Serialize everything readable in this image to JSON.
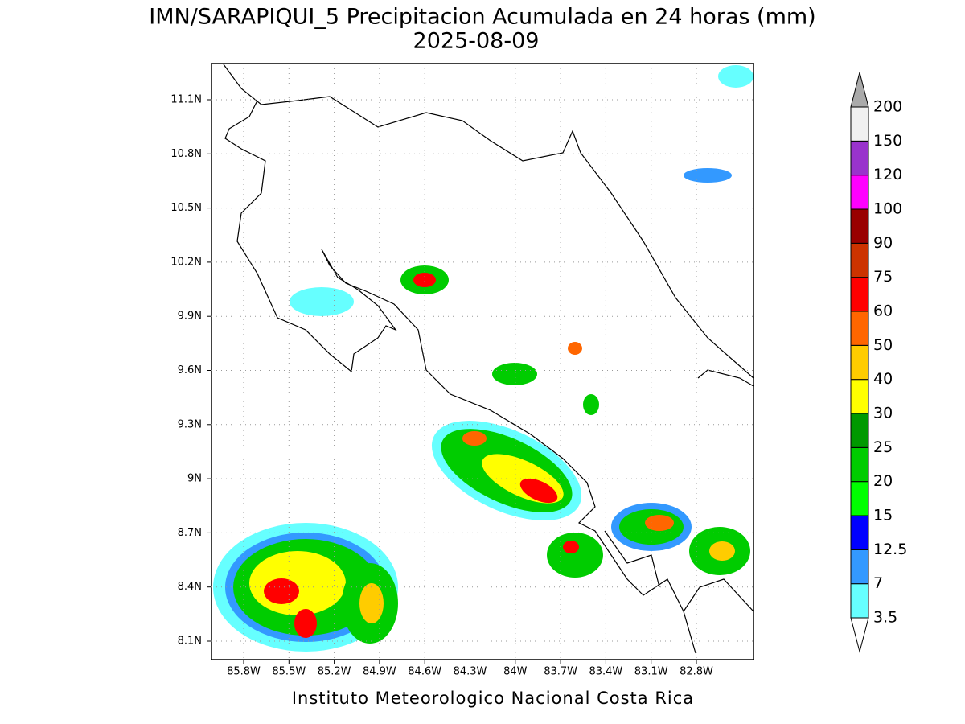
{
  "title": "IMN/SARAPIQUI_5 Precipitacion Acumulada en 24 horas (mm)",
  "date": "2025-08-09",
  "map": {
    "lat_labels": [
      "11.1N",
      "10.8N",
      "10.5N",
      "10.2N",
      "9.9N",
      "9.6N",
      "9.3N",
      "9N",
      "8.7N",
      "8.4N",
      "8.1N"
    ],
    "lon_labels": [
      "85.8W",
      "85.5W",
      "85.2W",
      "84.9W",
      "84.6W",
      "84.3W",
      "84W",
      "83.7W",
      "83.4W",
      "83.1W",
      "82.8W"
    ]
  },
  "colorbar": {
    "levels": [
      3.5,
      7,
      12.5,
      15,
      20,
      25,
      30,
      40,
      50,
      60,
      75,
      90,
      100,
      120,
      150,
      200
    ],
    "colors": [
      "#ffffff",
      "#66ffff",
      "#3399ff",
      "#0000ff",
      "#00ff00",
      "#00cc00",
      "#009900",
      "#ffff00",
      "#ffcc00",
      "#ff6600",
      "#ff0000",
      "#cc3300",
      "#990000",
      "#ff00ff",
      "#9933cc",
      "#f0f0f0",
      "#aaaaaa"
    ]
  },
  "credit": "Instituto Meteorologico Nacional Costa Rica"
}
